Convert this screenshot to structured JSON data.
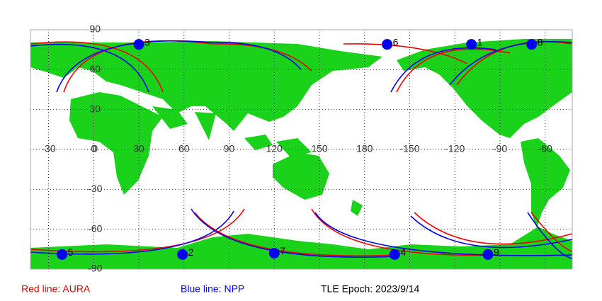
{
  "map": {
    "lat_ticks": [
      90,
      60,
      30,
      0,
      -30,
      -60,
      -90
    ],
    "lon_ticks": [
      -30,
      0,
      30,
      60,
      90,
      120,
      150,
      180,
      -150,
      -120,
      -90,
      -60
    ],
    "points": [
      {
        "label": "1",
        "lon": -109,
        "lat": 79
      },
      {
        "label": "2",
        "lon": 59,
        "lat": -79
      },
      {
        "label": "3",
        "lon": 30,
        "lat": 79
      },
      {
        "label": "4",
        "lon": -160,
        "lat": -79
      },
      {
        "label": "5",
        "lon": -21,
        "lat": -79
      },
      {
        "label": "6",
        "lon": -165,
        "lat": 79
      },
      {
        "label": "7",
        "lon": 120,
        "lat": -78
      },
      {
        "label": "8",
        "lon": -69,
        "lat": 79
      },
      {
        "label": "9",
        "lon": -98,
        "lat": -79
      }
    ]
  },
  "legend": {
    "red": "Red line: AURA",
    "blue": "Blue line: NPP",
    "epoch": "TLE Epoch: 2023/9/14"
  }
}
